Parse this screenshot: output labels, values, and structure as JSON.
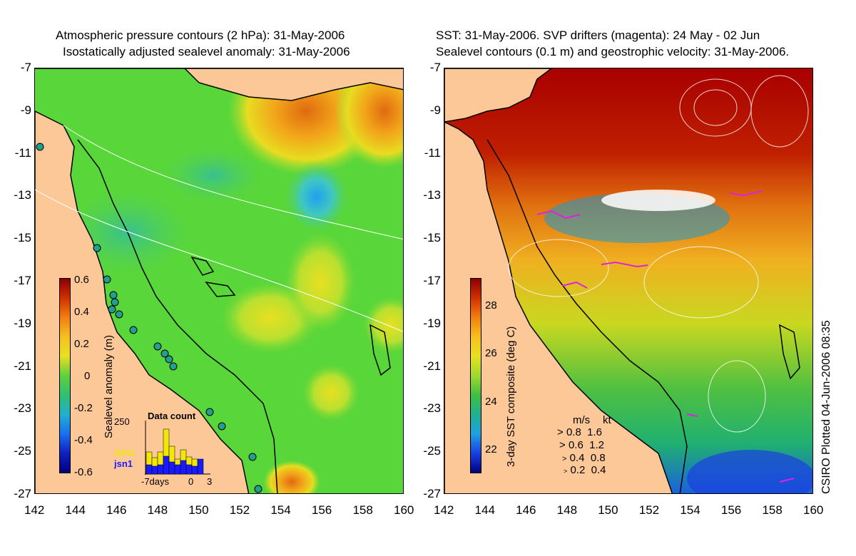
{
  "left_panel": {
    "title_line1": "Atmospheric pressure contours (2 hPa): 31-May-2006",
    "title_line2": "Isostatically adjusted sealevel anomaly: 31-May-2006",
    "colorbar": {
      "label": "Sealevel anomaly (m)",
      "ticks": [
        "0.6",
        "0.4",
        "0.2",
        "0",
        "-0.2",
        "-0.4",
        "-0.6"
      ]
    },
    "histogram": {
      "title": "Data count",
      "ymax_label": "250",
      "x_label_left": "-7days",
      "x_label_mid": "0",
      "x_label_right": "3",
      "series_gfo": "GFO",
      "series_jsn1": "jsn1",
      "colors": {
        "gfo": "#f2e60a",
        "jsn1": "#1a1aff"
      }
    }
  },
  "right_panel": {
    "title_line1": "SST: 31-May-2006. SVP drifters (magenta): 24 May - 02 Jun",
    "title_line2": "Sealevel contours (0.1 m) and geostrophic velocity: 31-May-2006.",
    "colorbar": {
      "label": "3-day SST composite (deg C)",
      "ticks": [
        "28",
        "26",
        "24",
        "22"
      ]
    },
    "speed_legend": {
      "header_ms": "m/s",
      "header_kt": "kt",
      "rows": [
        {
          "ms": "0.8",
          "kt": "1.6"
        },
        {
          "ms": "0.6",
          "kt": "1.2"
        },
        {
          "ms": "0.4",
          "kt": "0.8"
        },
        {
          "ms": "0.2",
          "kt": "0.4"
        }
      ]
    },
    "credit": "CSIRO Plotted 04-Jun-2006 08:35"
  },
  "axes": {
    "y_ticks": [
      "-7",
      "-9",
      "-11",
      "-13",
      "-15",
      "-17",
      "-19",
      "-21",
      "-23",
      "-25",
      "-27"
    ],
    "x_ticks": [
      "142",
      "144",
      "146",
      "148",
      "150",
      "152",
      "154",
      "156",
      "158",
      "160"
    ],
    "lon_range": [
      142,
      160
    ],
    "lat_range": [
      -27,
      -7
    ]
  },
  "colors": {
    "land": "#fdc898",
    "coastline": "#000000",
    "sla_background": "#59d639",
    "sst_warm": "#a80000"
  }
}
